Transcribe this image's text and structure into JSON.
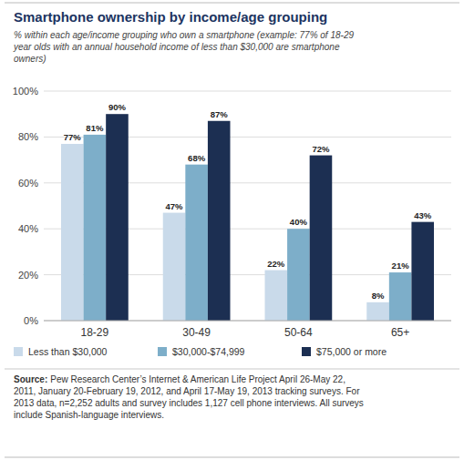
{
  "chart_data": {
    "type": "bar",
    "title": "Smartphone ownership by income/age grouping",
    "subtitle": "% within each age/income grouping who own a smartphone (example: 77% of 18-29\nyear olds with an annual household income of less than $30,000 are smartphone\nowners)",
    "categories": [
      "18-29",
      "30-49",
      "50-64",
      "65+"
    ],
    "series": [
      {
        "name": "Less than $30,000",
        "color": "#c9daea",
        "values": [
          77,
          47,
          22,
          8
        ],
        "value_labels": [
          "77%",
          "47%",
          "22%",
          "8%"
        ]
      },
      {
        "name": "$30,000-$74,999",
        "color": "#7daec9",
        "values": [
          81,
          68,
          40,
          21
        ],
        "value_labels": [
          "81%",
          "68%",
          "40%",
          "21%"
        ]
      },
      {
        "name": "$75,000 or more",
        "color": "#1c2f52",
        "values": [
          90,
          87,
          72,
          43
        ],
        "value_labels": [
          "90%",
          "87%",
          "72%",
          "43%"
        ]
      }
    ],
    "ylim": [
      0,
      100
    ],
    "yticks": [
      {
        "value": 0,
        "label": "0%"
      },
      {
        "value": 20,
        "label": "20%"
      },
      {
        "value": 40,
        "label": "40%"
      },
      {
        "value": 60,
        "label": "60%"
      },
      {
        "value": 80,
        "label": "80%"
      },
      {
        "value": 100,
        "label": "100%"
      }
    ],
    "grid": true,
    "data_labels": true,
    "legend": "bottom",
    "annotations": [
      "Source:",
      "Pew Research Center’s Internet & American Life Project April 26-May 22,\n2011, January 20-February 19, 2012, and April 17-May 19, 2013 tracking surveys. For\n2013 data, n=2,252 adults and survey includes 1,127 cell phone interviews. All surveys\ninclude Spanish-language interviews."
    ]
  }
}
